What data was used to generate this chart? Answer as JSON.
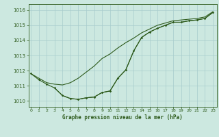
{
  "title": "Graphe pression niveau de la mer (hPa)",
  "background_color": "#cce8e0",
  "grid_color": "#a8cccc",
  "line_color": "#2d5a1b",
  "x_ticks": [
    0,
    1,
    2,
    3,
    4,
    5,
    6,
    7,
    8,
    9,
    10,
    11,
    12,
    13,
    14,
    15,
    16,
    17,
    18,
    19,
    20,
    21,
    22,
    23
  ],
  "y_ticks": [
    1010,
    1011,
    1012,
    1013,
    1014,
    1015,
    1016
  ],
  "ylim": [
    1009.6,
    1016.4
  ],
  "xlim": [
    -0.3,
    23.5
  ],
  "series1_x": [
    0,
    1,
    2,
    3,
    4,
    5,
    6,
    7,
    8,
    9,
    10,
    11,
    12,
    13,
    14,
    15,
    16,
    17,
    18,
    19,
    20,
    21,
    22,
    23
  ],
  "series1_y": [
    1011.8,
    1011.4,
    1011.1,
    1010.85,
    1010.35,
    1010.15,
    1010.1,
    1010.2,
    1010.25,
    1010.55,
    1010.65,
    1011.5,
    1012.05,
    1013.3,
    1014.2,
    1014.55,
    1014.8,
    1015.0,
    1015.2,
    1015.2,
    1015.3,
    1015.35,
    1015.45,
    1015.85
  ],
  "series2_x": [
    0,
    1,
    2,
    3,
    4,
    5,
    6,
    7,
    8,
    9,
    10,
    11,
    12,
    13,
    14,
    15,
    16,
    17,
    18,
    19,
    20,
    21,
    22,
    23
  ],
  "series2_y": [
    1011.8,
    1011.5,
    1011.2,
    1011.1,
    1011.05,
    1011.2,
    1011.5,
    1011.9,
    1012.3,
    1012.8,
    1013.1,
    1013.5,
    1013.85,
    1014.15,
    1014.5,
    1014.75,
    1015.0,
    1015.15,
    1015.3,
    1015.35,
    1015.4,
    1015.45,
    1015.55,
    1015.9
  ],
  "series3_x": [
    3,
    4,
    5,
    6,
    7,
    8,
    9,
    10,
    11,
    12,
    13,
    14,
    15,
    16,
    17,
    18,
    19,
    20,
    21,
    22,
    23
  ],
  "series3_y": [
    1010.85,
    1010.35,
    1010.15,
    1010.1,
    1010.2,
    1010.25,
    1010.55,
    1010.65,
    1011.5,
    1012.05,
    1013.3,
    1014.2,
    1014.55,
    1014.8,
    1015.0,
    1015.2,
    1015.2,
    1015.3,
    1015.35,
    1015.45,
    1015.85
  ]
}
